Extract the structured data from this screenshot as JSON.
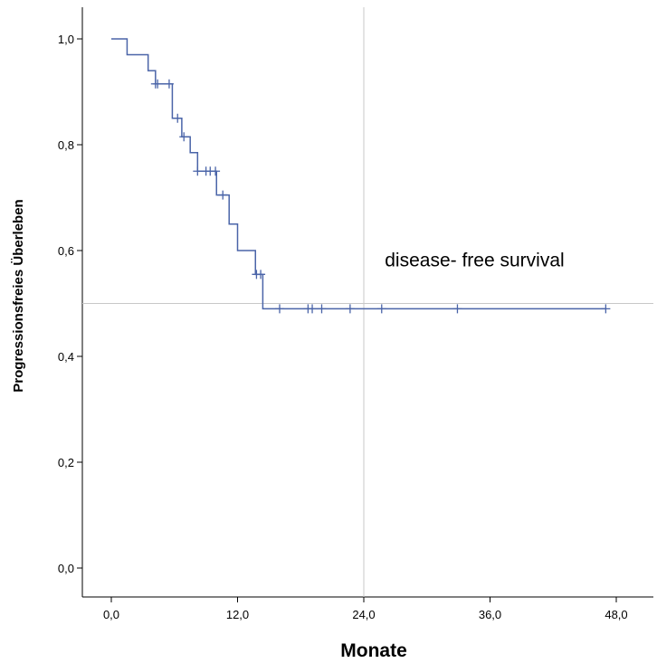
{
  "chart_data": {
    "type": "line",
    "step": true,
    "xlabel": "Monate",
    "ylabel": "Progressionsfreies  Überleben",
    "xlim": [
      -2.5,
      51.5
    ],
    "ylim": [
      -0.05,
      1.055
    ],
    "xticks": [
      0,
      12,
      24,
      36,
      48
    ],
    "xtick_labels": [
      "0,0",
      "12,0",
      "24,0",
      "36,0",
      "48,0"
    ],
    "yticks": [
      0.0,
      0.2,
      0.4,
      0.6,
      0.8,
      1.0
    ],
    "ytick_labels": [
      "0,0",
      "0,2",
      "0,4",
      "0,6",
      "0,8",
      "1,0"
    ],
    "grid": false,
    "reference_lines": {
      "x": 24,
      "y": 0.5
    },
    "annotations": [
      {
        "text": "disease- free survival",
        "x": 26,
        "y": 0.57
      }
    ],
    "series": [
      {
        "color": "#4a64a8",
        "x": [
          0,
          1.5,
          3.5,
          4.2,
          5.8,
          6.7,
          7.5,
          8.2,
          10.0,
          11.2,
          12.0,
          13.7,
          14.4,
          47.0
        ],
        "y": [
          1.0,
          0.97,
          0.94,
          0.915,
          0.85,
          0.815,
          0.785,
          0.75,
          0.705,
          0.65,
          0.6,
          0.555,
          0.49,
          0.49
        ],
        "censored": [
          {
            "x": 4.2,
            "y": 0.915
          },
          {
            "x": 4.4,
            "y": 0.915
          },
          {
            "x": 5.5,
            "y": 0.915
          },
          {
            "x": 6.3,
            "y": 0.85
          },
          {
            "x": 6.9,
            "y": 0.815
          },
          {
            "x": 8.2,
            "y": 0.75
          },
          {
            "x": 9.0,
            "y": 0.75
          },
          {
            "x": 9.4,
            "y": 0.75
          },
          {
            "x": 9.9,
            "y": 0.75
          },
          {
            "x": 10.6,
            "y": 0.705
          },
          {
            "x": 13.8,
            "y": 0.555
          },
          {
            "x": 14.2,
            "y": 0.555
          },
          {
            "x": 16.0,
            "y": 0.49
          },
          {
            "x": 18.7,
            "y": 0.49
          },
          {
            "x": 19.1,
            "y": 0.49
          },
          {
            "x": 20.0,
            "y": 0.49
          },
          {
            "x": 22.7,
            "y": 0.49
          },
          {
            "x": 25.7,
            "y": 0.49
          },
          {
            "x": 32.9,
            "y": 0.49
          },
          {
            "x": 47.0,
            "y": 0.49
          }
        ]
      }
    ]
  }
}
